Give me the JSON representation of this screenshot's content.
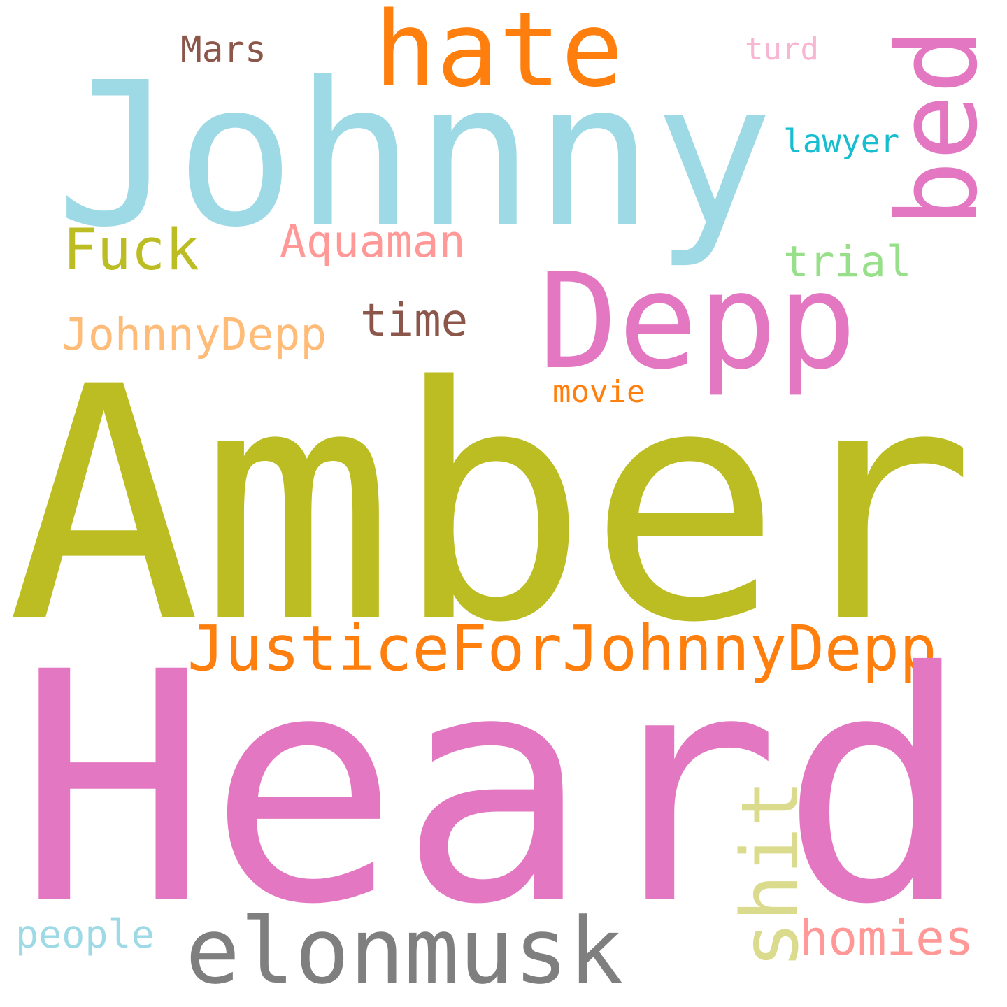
{
  "words": [
    {
      "text": "Johnny",
      "color": "#9edae5"
    },
    {
      "text": "hate",
      "color": "#ff7f0e"
    },
    {
      "text": "Mars",
      "color": "#8c564b"
    },
    {
      "text": "turd",
      "color": "#f7b6d2"
    },
    {
      "text": "bed",
      "color": "#e377c2"
    },
    {
      "text": "lawyer",
      "color": "#17becf"
    },
    {
      "text": "Fuck",
      "color": "#bcbd22"
    },
    {
      "text": "Aquaman",
      "color": "#ff9896"
    },
    {
      "text": "trial",
      "color": "#98df8a"
    },
    {
      "text": "Depp",
      "color": "#e377c2"
    },
    {
      "text": "time",
      "color": "#8c564b"
    },
    {
      "text": "JohnnyDepp",
      "color": "#ffbb78"
    },
    {
      "text": "movie",
      "color": "#ff7f0e"
    },
    {
      "text": "Amber",
      "color": "#bcbd22"
    },
    {
      "text": "JusticeForJohnnyDepp",
      "color": "#ff7f0e"
    },
    {
      "text": "Heard",
      "color": "#e377c2"
    },
    {
      "text": "shit",
      "color": "#dbdb8d"
    },
    {
      "text": "elonmusk",
      "color": "#7f7f7f"
    },
    {
      "text": "people",
      "color": "#9edae5"
    },
    {
      "text": "homies",
      "color": "#ff9896"
    }
  ]
}
